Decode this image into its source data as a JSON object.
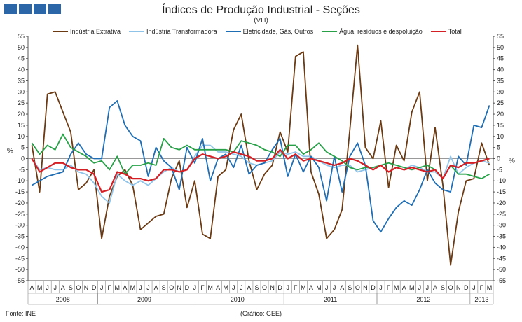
{
  "title": "Índices de Produção Industrial - Seções",
  "subtitle": "(VH)",
  "source": "Fonte: INE",
  "credit": "(Gráfico: GEE)",
  "chart_data": {
    "type": "line",
    "ylabel_left": "%",
    "ylabel_right": "%",
    "ylim": [
      -55,
      55
    ],
    "ytick_step": 5,
    "grid": false,
    "legend_position": "top",
    "x": [
      "A",
      "M",
      "J",
      "J",
      "A",
      "S",
      "O",
      "N",
      "D",
      "J",
      "F",
      "M",
      "A",
      "M",
      "J",
      "J",
      "A",
      "S",
      "O",
      "N",
      "D",
      "J",
      "F",
      "M",
      "A",
      "M",
      "J",
      "J",
      "A",
      "S",
      "O",
      "N",
      "D",
      "J",
      "F",
      "M",
      "A",
      "M",
      "J",
      "J",
      "A",
      "S",
      "O",
      "N",
      "D",
      "J",
      "F",
      "M",
      "A",
      "M",
      "J",
      "J",
      "A",
      "S",
      "O",
      "N",
      "D",
      "J",
      "F",
      "M"
    ],
    "years": [
      {
        "label": "2008",
        "start": 0,
        "count": 9
      },
      {
        "label": "2009",
        "start": 9,
        "count": 12
      },
      {
        "label": "2010",
        "start": 21,
        "count": 12
      },
      {
        "label": "2011",
        "start": 33,
        "count": 12
      },
      {
        "label": "2012",
        "start": 45,
        "count": 12
      },
      {
        "label": "2013",
        "start": 57,
        "count": 3
      }
    ],
    "series": [
      {
        "name": "Indústria Extrativa",
        "color": "#6b3a12",
        "values": [
          6,
          -15,
          29,
          30,
          21,
          12,
          -14,
          -11,
          -5,
          -36,
          -17,
          -8,
          -5,
          -12,
          -32,
          -29,
          -26,
          -25,
          -9,
          -1,
          -22,
          -10,
          -34,
          -36,
          -8,
          -5,
          13,
          20,
          -1,
          -14,
          -7,
          -3,
          12,
          3,
          46,
          48,
          -6,
          -16,
          -36,
          -32,
          -23,
          13,
          51,
          5,
          0,
          17,
          -13,
          6,
          -1,
          21,
          30,
          -10,
          14,
          -12,
          -48,
          -24,
          -10,
          -9,
          7,
          -3
        ]
      },
      {
        "name": "Indústria Transformadora",
        "color": "#8fc3e8",
        "values": [
          0,
          -5,
          -4,
          -5,
          -5,
          -3,
          -6,
          -7,
          -11,
          -17,
          -20,
          -7,
          -10,
          -12,
          -10,
          -12,
          -9,
          -6,
          -4,
          -6,
          -5,
          1,
          6,
          6,
          3,
          3,
          2,
          1,
          -2,
          -3,
          -2,
          -1,
          3,
          2,
          3,
          1,
          1,
          -1,
          -3,
          -4,
          -3,
          -3,
          -6,
          -5,
          -4,
          -3,
          -6,
          -4,
          -5,
          -3,
          -4,
          -6,
          -6,
          -9,
          1,
          -7,
          -4,
          -2,
          -1,
          -2
        ]
      },
      {
        "name": "Eletricidade, Gás, Outros",
        "color": "#1f6db3",
        "values": [
          -12,
          -10,
          -8,
          -7,
          -6,
          2,
          7,
          2,
          0,
          0,
          23,
          26,
          15,
          10,
          8,
          -8,
          5,
          -1,
          -4,
          -14,
          5,
          -2,
          9,
          -10,
          0,
          2,
          -4,
          6,
          -7,
          -3,
          -2,
          4,
          9,
          -8,
          2,
          -6,
          1,
          -4,
          -19,
          1,
          -15,
          1,
          7,
          -3,
          -28,
          -33,
          -27,
          -22,
          -19,
          -21,
          -14,
          -5,
          -11,
          -14,
          -15,
          1,
          -3,
          15,
          14,
          24
        ]
      },
      {
        "name": "Água, resíduos e despoluição",
        "color": "#27a048",
        "values": [
          7,
          2,
          6,
          4,
          11,
          5,
          3,
          1,
          -2,
          -1,
          -5,
          1,
          -7,
          -3,
          -3,
          -2,
          -3,
          9,
          5,
          4,
          6,
          4,
          4,
          4,
          4,
          4,
          3,
          8,
          7,
          6,
          4,
          3,
          1,
          6,
          6,
          2,
          4,
          7,
          3,
          1,
          -1,
          -4,
          -5,
          -4,
          -4,
          -3,
          -2,
          -3,
          -4,
          -5,
          -4,
          -3,
          -5,
          -9,
          -3,
          -7,
          -7,
          -8,
          -9,
          -7
        ]
      },
      {
        "name": "Total",
        "color": "#d41f25",
        "values": [
          0,
          -6,
          -4,
          -2,
          -2,
          -4,
          -5,
          -5,
          -7,
          -15,
          -14,
          -6,
          -7,
          -9,
          -9,
          -10,
          -9,
          -5,
          -5,
          -6,
          -5,
          0,
          2,
          1,
          0,
          1,
          3,
          2,
          1,
          -1,
          -1,
          0,
          4,
          0,
          2,
          -1,
          0,
          -1,
          -2,
          -3,
          -2,
          0,
          -1,
          -3,
          -5,
          -3,
          -6,
          -4,
          -5,
          -4,
          -5,
          -6,
          -5,
          -9,
          -3,
          -4,
          -2,
          -2,
          -1,
          0
        ]
      }
    ]
  }
}
